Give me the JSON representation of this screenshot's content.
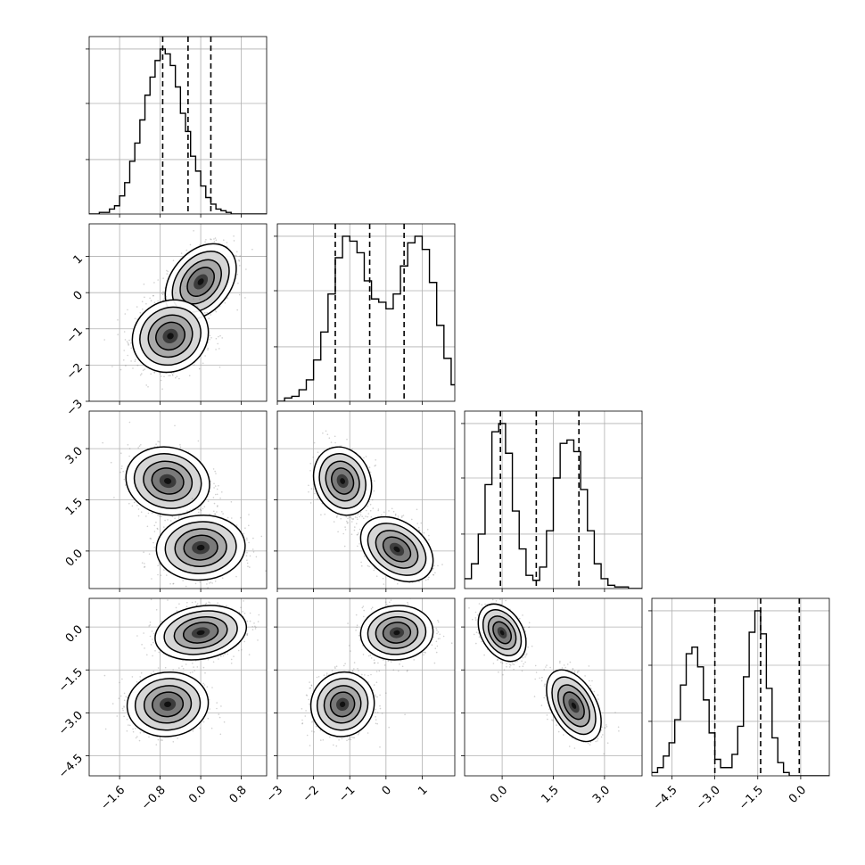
{
  "chart_data": {
    "type": "corner",
    "title": "",
    "grid": true,
    "n_params": 4,
    "axis_ranges": [
      [
        -2.2,
        1.3
      ],
      [
        -3.0,
        1.9
      ],
      [
        -1.1,
        4.1
      ],
      [
        -5.2,
        1.0
      ]
    ],
    "quantiles": [
      [
        -0.75,
        -0.25,
        0.2
      ],
      [
        -1.4,
        -0.45,
        0.5
      ],
      [
        -0.05,
        1.0,
        2.25
      ],
      [
        -3.0,
        -1.4,
        -0.05
      ]
    ],
    "hist_ylim": [
      0,
      1
    ],
    "yticks_hist": [
      0.33,
      0.67,
      1.0
    ],
    "xtick_values": [
      [
        -1.6,
        -0.8,
        0.0,
        0.8
      ],
      [
        -3,
        -2,
        -1,
        0,
        1
      ],
      [
        0.0,
        1.5,
        3.0
      ],
      [
        -4.5,
        -3.0,
        -1.5,
        0.0
      ]
    ],
    "xtick_labels": [
      [
        "−1.6",
        "−0.8",
        "0.0",
        "0.8"
      ],
      [
        "−3",
        "−2",
        "−1",
        "0",
        "1"
      ],
      [
        "0.0",
        "1.5",
        "3.0"
      ],
      [
        "−4.5",
        "−3.0",
        "−1.5",
        "0.0"
      ]
    ],
    "ytick_rows": [
      null,
      {
        "values": [
          -3,
          -2,
          -1,
          0,
          1
        ],
        "labels": [
          "−3",
          "−2",
          "−1",
          "0",
          "1"
        ]
      },
      {
        "values": [
          0.0,
          1.5,
          3.0
        ],
        "labels": [
          "0.0",
          "1.5",
          "3.0"
        ]
      },
      {
        "values": [
          -4.5,
          -3.0,
          -1.5,
          0.0
        ],
        "labels": [
          "−4.5",
          "−3.0",
          "−1.5",
          "0.0"
        ]
      }
    ],
    "histograms": [
      {
        "start": -2.2,
        "width": 0.1,
        "counts": [
          0,
          0,
          0.01,
          0.01,
          0.03,
          0.05,
          0.11,
          0.19,
          0.32,
          0.43,
          0.57,
          0.72,
          0.83,
          0.93,
          1.0,
          0.97,
          0.9,
          0.77,
          0.61,
          0.5,
          0.35,
          0.26,
          0.17,
          0.1,
          0.06,
          0.03,
          0.02,
          0.01,
          0,
          0,
          0,
          0,
          0,
          0,
          0
        ]
      },
      {
        "start": -3.0,
        "width": 0.2,
        "counts": [
          0,
          0.02,
          0.03,
          0.07,
          0.13,
          0.25,
          0.42,
          0.65,
          0.87,
          1.0,
          0.97,
          0.9,
          0.73,
          0.62,
          0.6,
          0.56,
          0.65,
          0.82,
          0.96,
          1.0,
          0.92,
          0.72,
          0.46,
          0.26,
          0.1,
          0.03
        ]
      },
      {
        "start": -1.1,
        "width": 0.2,
        "counts": [
          0.06,
          0.15,
          0.33,
          0.63,
          0.95,
          1.0,
          0.82,
          0.47,
          0.24,
          0.08,
          0.05,
          0.13,
          0.35,
          0.67,
          0.88,
          0.9,
          0.83,
          0.6,
          0.35,
          0.15,
          0.06,
          0.02,
          0.01,
          0.01,
          0,
          0
        ]
      },
      {
        "start": -5.2,
        "width": 0.2,
        "counts": [
          0.02,
          0.05,
          0.12,
          0.2,
          0.34,
          0.55,
          0.74,
          0.78,
          0.66,
          0.46,
          0.26,
          0.1,
          0.05,
          0.05,
          0.13,
          0.3,
          0.6,
          0.87,
          1.0,
          0.86,
          0.53,
          0.23,
          0.08,
          0.02,
          0,
          0,
          0,
          0,
          0,
          0,
          0
        ]
      }
    ],
    "blobs": {
      "1_0": [
        {
          "x": 0.0,
          "y": 0.3,
          "sx": 0.28,
          "sy": 0.42,
          "rho": 0.35
        },
        {
          "x": -0.6,
          "y": -1.2,
          "sx": 0.3,
          "sy": 0.4,
          "rho": 0.1
        }
      ],
      "2_0": [
        {
          "x": -0.65,
          "y": 2.05,
          "sx": 0.33,
          "sy": 0.4,
          "rho": -0.1
        },
        {
          "x": 0.0,
          "y": 0.1,
          "sx": 0.35,
          "sy": 0.38,
          "rho": 0.05
        }
      ],
      "2_1": [
        {
          "x": -1.2,
          "y": 2.05,
          "sx": 0.32,
          "sy": 0.4,
          "rho": -0.15
        },
        {
          "x": 0.3,
          "y": 0.05,
          "sx": 0.4,
          "sy": 0.38,
          "rho": -0.35
        }
      ],
      "3_0": [
        {
          "x": 0.0,
          "y": -0.2,
          "sx": 0.36,
          "sy": 0.38,
          "rho": 0.2
        },
        {
          "x": -0.65,
          "y": -2.7,
          "sx": 0.32,
          "sy": 0.45,
          "rho": 0.05
        }
      ],
      "3_1": [
        {
          "x": 0.3,
          "y": -0.2,
          "sx": 0.4,
          "sy": 0.38,
          "rho": 0.05
        },
        {
          "x": -1.2,
          "y": -2.7,
          "sx": 0.35,
          "sy": 0.45,
          "rho": 0.05
        }
      ],
      "3_2": [
        {
          "x": 0.0,
          "y": -0.2,
          "sx": 0.28,
          "sy": 0.4,
          "rho": -0.35
        },
        {
          "x": 2.1,
          "y": -2.75,
          "sx": 0.32,
          "sy": 0.5,
          "rho": -0.45
        }
      ]
    }
  }
}
